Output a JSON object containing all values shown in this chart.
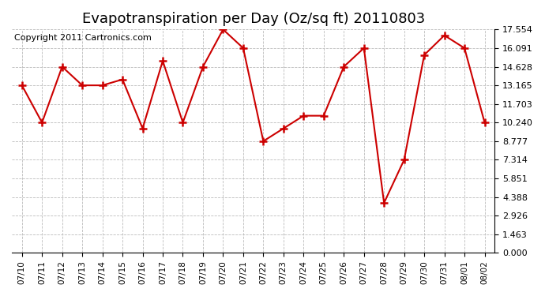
{
  "title": "Evapotranspiration per Day (Oz/sq ft) 20110803",
  "copyright": "Copyright 2011 Cartronics.com",
  "dates": [
    "07/10",
    "07/11",
    "07/12",
    "07/13",
    "07/14",
    "07/15",
    "07/16",
    "07/17",
    "07/18",
    "07/19",
    "07/20",
    "07/21",
    "07/22",
    "07/23",
    "07/24",
    "07/25",
    "07/26",
    "07/27",
    "07/28",
    "07/29",
    "07/30",
    "07/31",
    "08/01",
    "08/02"
  ],
  "values": [
    13.165,
    10.24,
    14.628,
    13.165,
    13.165,
    13.628,
    9.777,
    15.091,
    10.24,
    14.628,
    17.554,
    16.091,
    8.777,
    9.777,
    10.777,
    10.777,
    14.628,
    16.091,
    3.926,
    7.314,
    15.554,
    17.091,
    16.091,
    10.24
  ],
  "ylim": [
    0.0,
    17.554
  ],
  "yticks": [
    0.0,
    1.463,
    2.926,
    4.388,
    5.851,
    7.314,
    8.777,
    10.24,
    11.703,
    13.165,
    14.628,
    16.091,
    17.554
  ],
  "line_color": "#cc0000",
  "marker_color": "#cc0000",
  "bg_color": "#ffffff",
  "grid_color": "#bbbbbb",
  "title_fontsize": 13,
  "copyright_fontsize": 8
}
